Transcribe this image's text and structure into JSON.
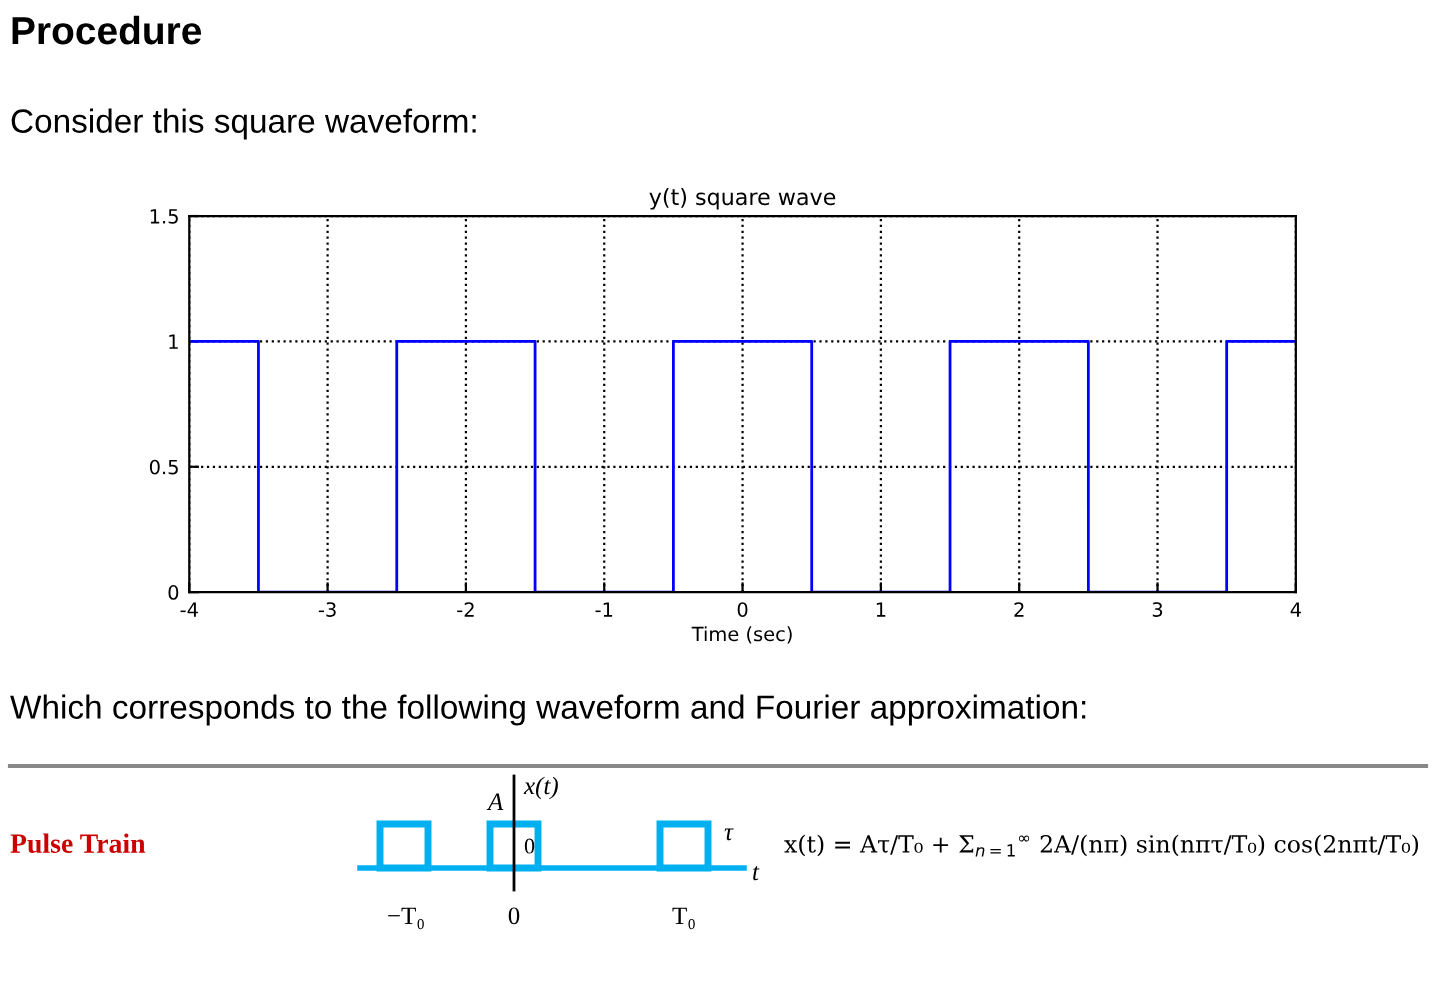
{
  "chart_data": {
    "type": "step",
    "title": "y(t) square wave",
    "xlabel": "Time (sec)",
    "x": [
      -4,
      -3.5,
      -2.5,
      -1.5,
      -0.5,
      0.5,
      1.5,
      2.5,
      3.5,
      4
    ],
    "series": [
      {
        "color": "#0000ff",
        "values": [
          1,
          0,
          1,
          0,
          1,
          0,
          1,
          0,
          1,
          1
        ]
      }
    ],
    "xlim": [
      -4,
      4
    ],
    "xticks": [
      -4,
      -3,
      -2,
      -1,
      0,
      1,
      2,
      3,
      4
    ],
    "ylim": [
      0,
      1.5
    ],
    "yticks": [
      0,
      0.5,
      1,
      1.5
    ],
    "grid": true,
    "annotations": [
      "Procedure",
      "Consider this square waveform:",
      "Which corresponds to the following waveform and Fourier approximation:",
      "Pulse Train",
      "x(t)",
      "A",
      "0",
      "−T₀",
      "0",
      "T₀",
      "τ",
      "t",
      "x(t) = Aτ/T₀ + Σ$_{n=1}$$^{∞}$ 2A/(nπ) sin(nπτ/T₀) cos(2nπt/T₀)"
    ]
  }
}
